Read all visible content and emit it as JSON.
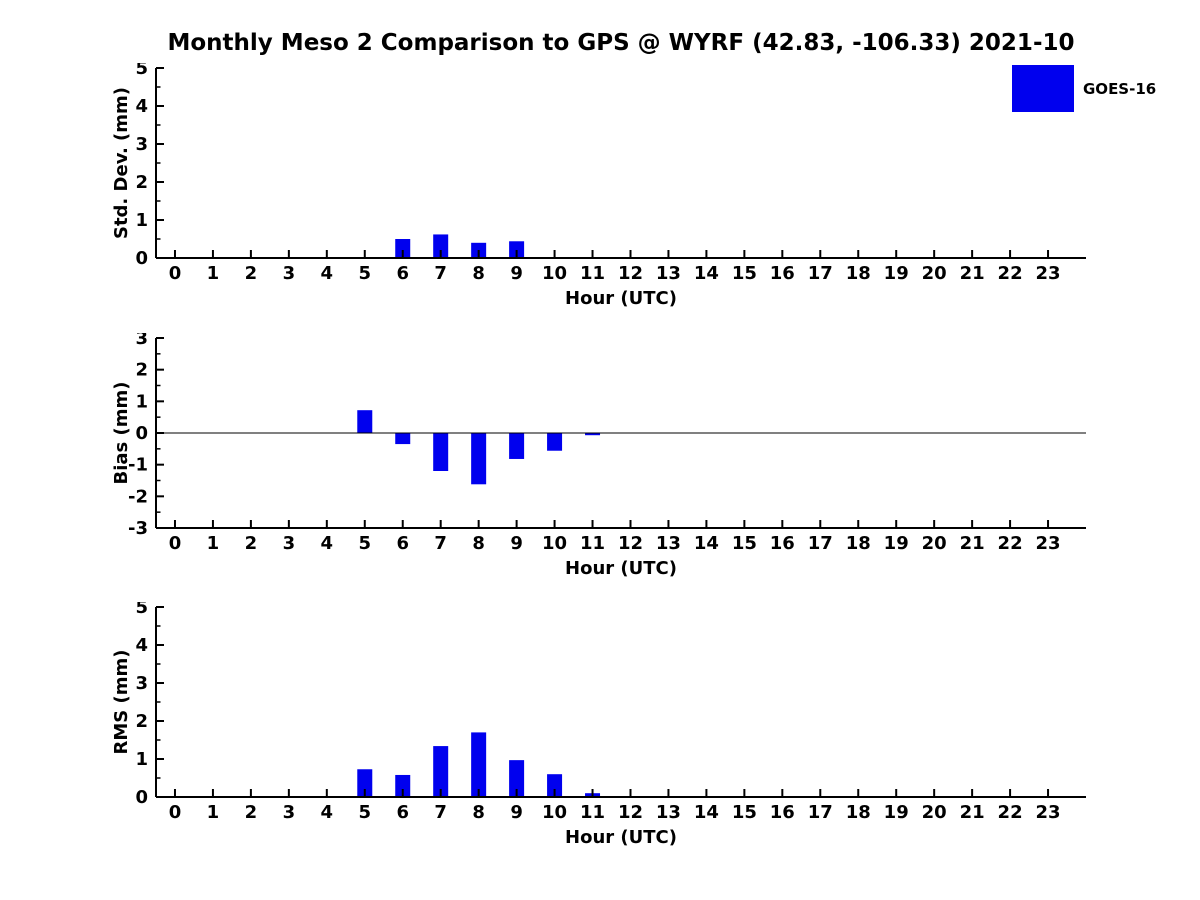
{
  "page": {
    "title": "Monthly Meso 2 Comparison to GPS @ WYRF (42.83, -106.33) 2021-10",
    "background": "#ffffff"
  },
  "legend": {
    "label": "GOES-16",
    "color": "#0000EE",
    "position": "top-right"
  },
  "chart_data": [
    {
      "type": "bar",
      "title": "",
      "ylabel": "Std. Dev. (mm)",
      "xlabel": "Hour (UTC)",
      "ylim": [
        0,
        5
      ],
      "yticks": [
        0,
        1,
        2,
        3,
        4,
        5
      ],
      "xlim": [
        -0.5,
        24
      ],
      "grid": false,
      "zero_line": false,
      "bar_color": "#0000EE",
      "x": [
        0,
        1,
        2,
        3,
        4,
        5,
        6,
        7,
        8,
        9,
        10,
        11,
        12,
        13,
        14,
        15,
        16,
        17,
        18,
        19,
        20,
        21,
        22,
        23
      ],
      "series": [
        {
          "name": "GOES-16",
          "values": [
            0,
            0,
            0,
            0,
            0,
            0,
            0.5,
            0.62,
            0.4,
            0.44,
            0,
            0,
            0,
            0,
            0,
            0,
            0,
            0,
            0,
            0,
            0,
            0,
            0,
            0
          ]
        }
      ]
    },
    {
      "type": "bar",
      "title": "",
      "ylabel": "Bias (mm)",
      "xlabel": "Hour (UTC)",
      "ylim": [
        -3,
        3
      ],
      "yticks": [
        -3,
        -2,
        -1,
        0,
        1,
        2,
        3
      ],
      "xlim": [
        -0.5,
        24
      ],
      "grid": false,
      "zero_line": true,
      "bar_color": "#0000EE",
      "x": [
        0,
        1,
        2,
        3,
        4,
        5,
        6,
        7,
        8,
        9,
        10,
        11,
        12,
        13,
        14,
        15,
        16,
        17,
        18,
        19,
        20,
        21,
        22,
        23
      ],
      "series": [
        {
          "name": "GOES-16",
          "values": [
            0,
            0,
            0,
            0,
            0,
            0.72,
            -0.35,
            -1.2,
            -1.62,
            -0.82,
            -0.56,
            -0.07,
            0,
            0,
            0,
            0,
            0,
            0,
            0,
            0,
            0,
            0,
            0,
            0
          ]
        }
      ]
    },
    {
      "type": "bar",
      "title": "",
      "ylabel": "RMS (mm)",
      "xlabel": "Hour (UTC)",
      "ylim": [
        0,
        5
      ],
      "yticks": [
        0,
        1,
        2,
        3,
        4,
        5
      ],
      "xlim": [
        -0.5,
        24
      ],
      "grid": false,
      "zero_line": false,
      "bar_color": "#0000EE",
      "x": [
        0,
        1,
        2,
        3,
        4,
        5,
        6,
        7,
        8,
        9,
        10,
        11,
        12,
        13,
        14,
        15,
        16,
        17,
        18,
        19,
        20,
        21,
        22,
        23
      ],
      "series": [
        {
          "name": "GOES-16",
          "values": [
            0,
            0,
            0,
            0,
            0,
            0.73,
            0.58,
            1.34,
            1.7,
            0.97,
            0.6,
            0.1,
            0,
            0,
            0,
            0,
            0,
            0,
            0,
            0,
            0,
            0,
            0,
            0
          ]
        }
      ]
    }
  ]
}
